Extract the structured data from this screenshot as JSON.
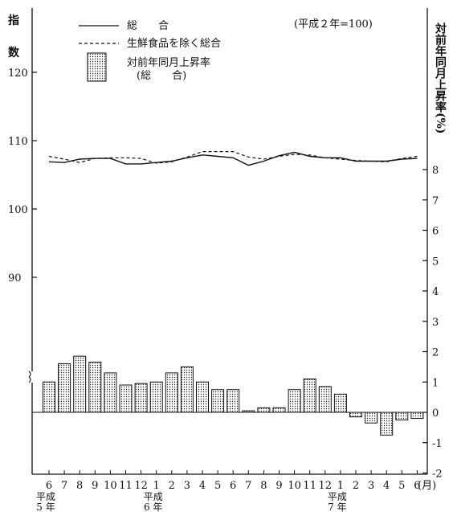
{
  "chart_data": {
    "type": "bar+line",
    "note": "(平成２年=100)",
    "left_axis": {
      "label": "指数",
      "ticks": [
        "120",
        "110",
        "100",
        "90"
      ],
      "tick_values": [
        120,
        110,
        100,
        90
      ]
    },
    "right_axis": {
      "label": "対前年同月上昇率(%)",
      "ticks": [
        "8",
        "7",
        "6",
        "5",
        "4",
        "3",
        "2",
        "1",
        "0",
        "-1",
        "-2"
      ],
      "tick_values": [
        8,
        7,
        6,
        5,
        4,
        3,
        2,
        1,
        0,
        -1,
        -2
      ]
    },
    "x_labels": [
      "6",
      "7",
      "8",
      "9",
      "10",
      "11",
      "12",
      "1",
      "2",
      "3",
      "4",
      "5",
      "6",
      "7",
      "8",
      "9",
      "10",
      "11",
      "12",
      "1",
      "2",
      "3",
      "4",
      "5",
      "6"
    ],
    "x_unit": "(月)",
    "year_labels": [
      {
        "line1": "平成",
        "line2": "5 年",
        "index": 0
      },
      {
        "line1": "平成",
        "line2": "6 年",
        "index": 7
      },
      {
        "line1": "平成",
        "line2": "7 年",
        "index": 19
      }
    ],
    "legend": [
      {
        "label": "総　　合",
        "style": "solid-line"
      },
      {
        "label": "生鮮食品を除く総合",
        "style": "dashed-line"
      },
      {
        "label": "対前年同月上昇率",
        "label2": "(総　　合)",
        "style": "dotted-bar"
      }
    ],
    "series": [
      {
        "name": "総　　合",
        "axis": "left",
        "values": [
          106.9,
          106.8,
          107.3,
          107.4,
          107.4,
          106.6,
          106.6,
          106.8,
          107.0,
          107.5,
          107.9,
          107.7,
          107.5,
          106.4,
          107.0,
          107.8,
          108.3,
          107.7,
          107.5,
          107.5,
          107.0,
          107.0,
          107.0,
          107.3,
          107.4
        ]
      },
      {
        "name": "生鮮食品を除く総合",
        "axis": "left",
        "values": [
          107.7,
          107.3,
          106.8,
          107.4,
          107.5,
          107.5,
          107.4,
          106.7,
          106.9,
          107.6,
          108.4,
          108.4,
          108.4,
          107.6,
          107.3,
          107.7,
          108.0,
          107.9,
          107.5,
          107.3,
          107.1,
          107.0,
          106.9,
          107.4,
          107.7
        ]
      },
      {
        "name": "対前年同月上昇率 (総　　合)",
        "axis": "right",
        "type": "bar",
        "values": [
          1.0,
          1.6,
          1.85,
          1.65,
          1.3,
          0.9,
          0.95,
          1.0,
          1.3,
          1.5,
          1.0,
          0.75,
          0.75,
          0.05,
          0.15,
          0.15,
          0.75,
          1.1,
          0.85,
          0.6,
          -0.15,
          -0.35,
          -0.75,
          -0.25,
          -0.2
        ]
      }
    ],
    "ylim_left": [
      90,
      120
    ],
    "ylim_right": [
      -2,
      8
    ]
  },
  "colors": {
    "ink": "#111111",
    "bar_fill": "#ffffff"
  }
}
